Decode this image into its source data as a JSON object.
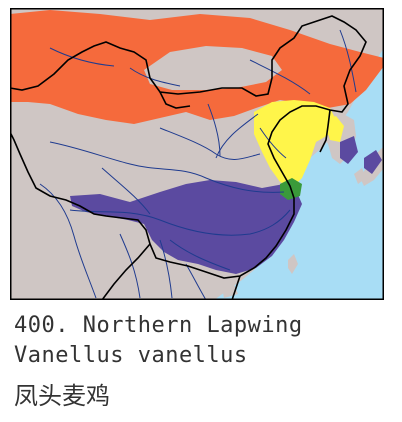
{
  "caption": {
    "species_number": "400.",
    "common_name": "Northern Lapwing",
    "scientific_name": "Vanellus vanellus",
    "chinese_name": "凤头麦鸡"
  },
  "map": {
    "colors": {
      "sea": "#a8ddf5",
      "land": "#cfc6c4",
      "breeding_range": "#f56a3c",
      "passage_range": "#fff54a",
      "wintering_range": "#5b4aa0",
      "resident_range": "#3a9a3a",
      "rivers": "#1f3b8f",
      "borders": "#000000",
      "frame": "#000000"
    }
  }
}
